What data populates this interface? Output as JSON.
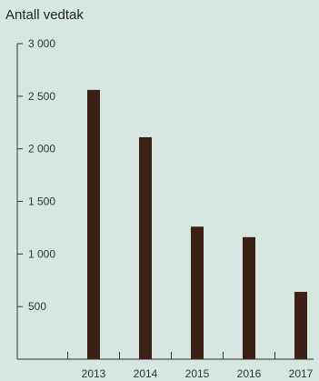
{
  "chart_data": {
    "type": "bar",
    "title": "Antall vedtak",
    "categories": [
      "2013",
      "2014",
      "2015",
      "2016",
      "2017"
    ],
    "values": [
      2560,
      2110,
      1260,
      1160,
      640
    ],
    "ylim": [
      0,
      3000
    ],
    "yticks": [
      500,
      1000,
      1500,
      2000,
      2500,
      3000
    ],
    "ytick_labels": [
      "500",
      "1 000",
      "1 500",
      "2 000",
      "2 500",
      "3 000"
    ],
    "grid": false,
    "legend": "none",
    "colors": {
      "bar": "#3d2015",
      "axis": "#333333",
      "background": "#d6e6e0"
    }
  }
}
